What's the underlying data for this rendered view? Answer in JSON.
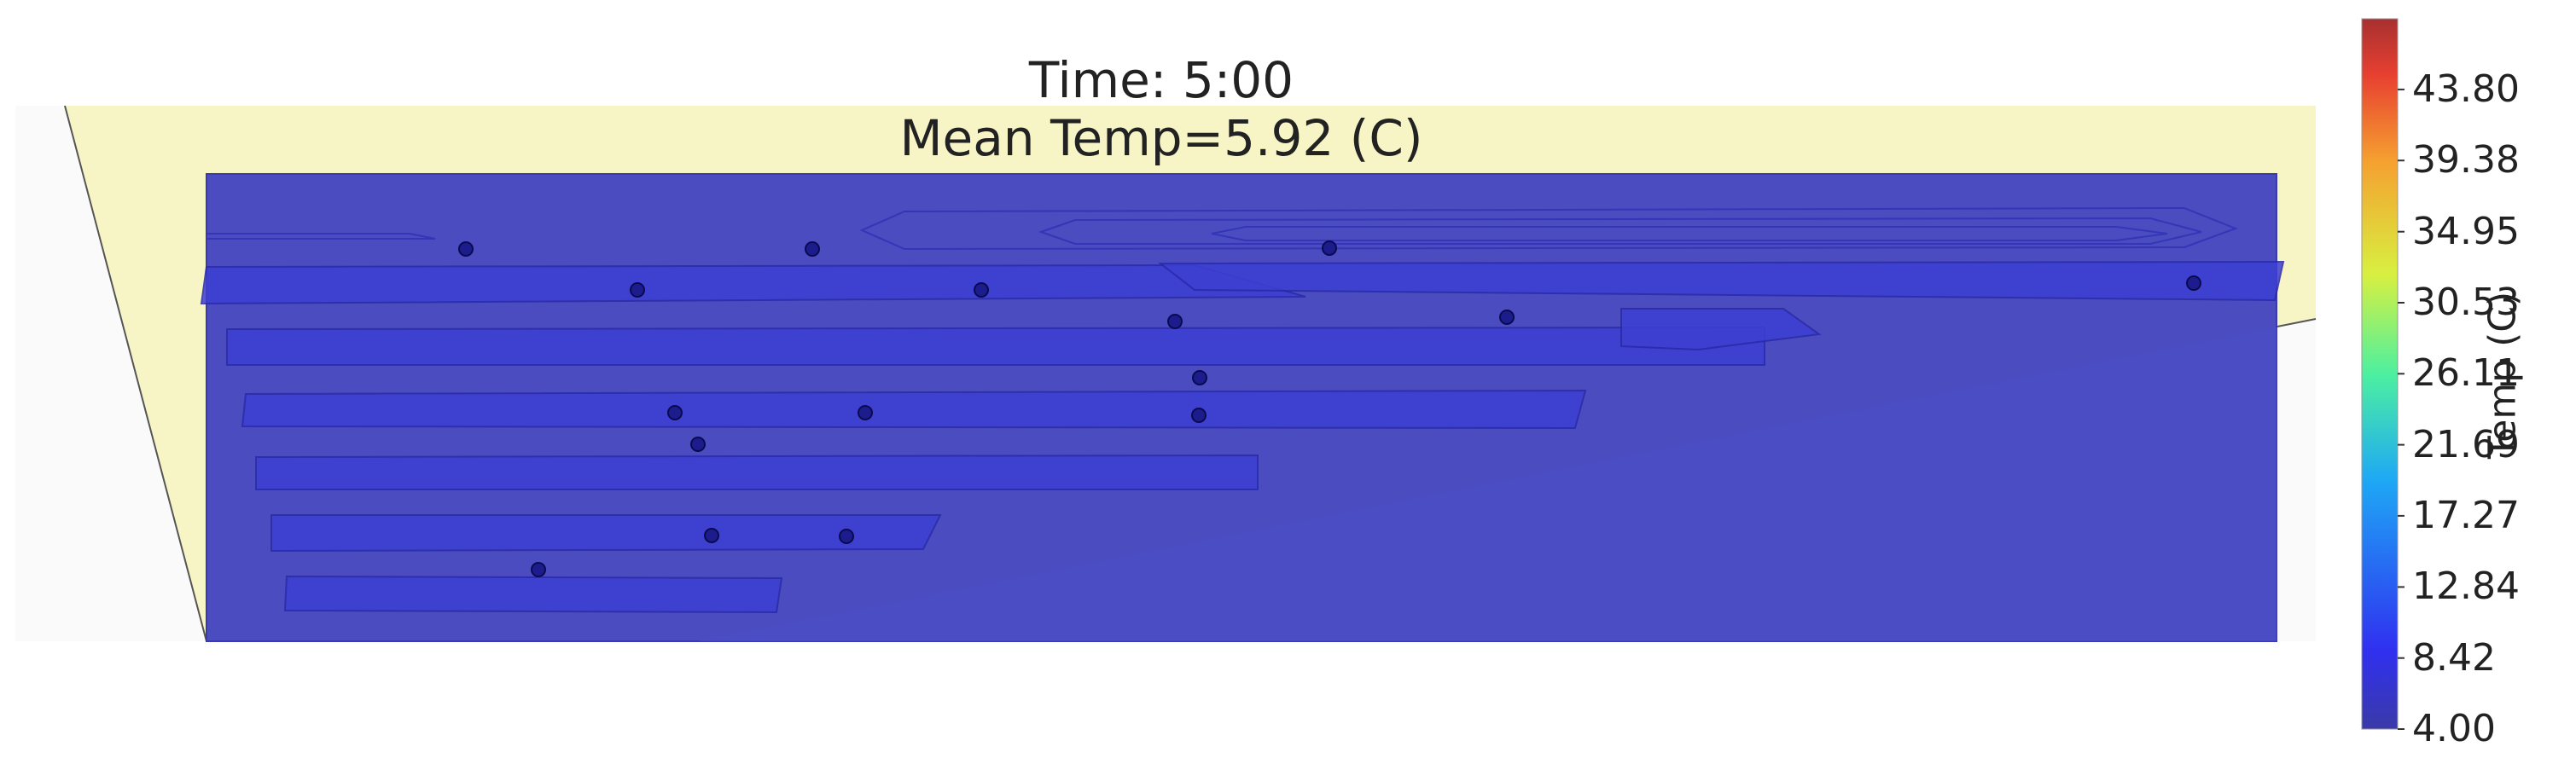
{
  "chart_data": {
    "type": "heatmap",
    "title": "Time: 5:00",
    "subtitle": "Mean Temp=5.92 (C)",
    "colorbar": {
      "label": "Temp (C)",
      "min": 4.0,
      "max": 48.2,
      "colormap": "jet",
      "ticks": [
        "4.00",
        "8.42",
        "12.84",
        "17.27",
        "21.69",
        "26.11",
        "30.53",
        "34.95",
        "39.38",
        "43.80"
      ]
    },
    "sensor_count": 17,
    "colors": {
      "background_zone": "#f7f4c6",
      "field_fill": "#4a4cc0",
      "row_fill": "#3d3fd2",
      "sensor_fill": "#1c1c8c"
    }
  }
}
